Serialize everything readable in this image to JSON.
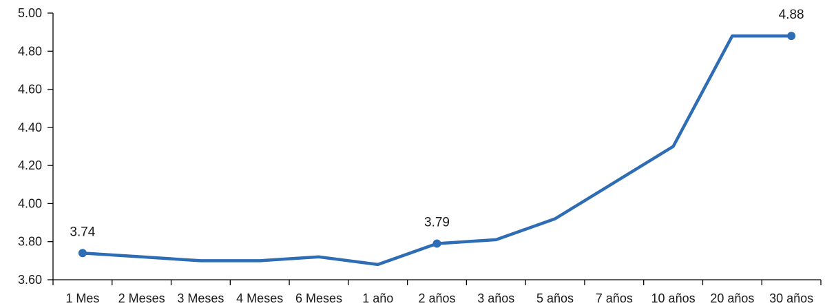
{
  "chart_data": {
    "type": "line",
    "title": "",
    "xlabel": "",
    "ylabel": "",
    "categories": [
      "1 Mes",
      "2 Meses",
      "3 Meses",
      "4 Meses",
      "6 Meses",
      "1 año",
      "2 años",
      "3 años",
      "5 años",
      "7 años",
      "10 años",
      "20 años",
      "30 años"
    ],
    "series": [
      {
        "values": [
          3.74,
          3.72,
          3.7,
          3.7,
          3.72,
          3.68,
          3.79,
          3.81,
          3.92,
          4.11,
          4.3,
          4.88,
          4.88
        ]
      }
    ],
    "ylim": [
      3.6,
      5.0
    ],
    "yticks": [
      "3.60",
      "3.80",
      "4.00",
      "4.20",
      "4.40",
      "4.60",
      "4.80",
      "5.00"
    ],
    "data_labels": [
      {
        "index": 0,
        "text": "3.74"
      },
      {
        "index": 6,
        "text": "3.79"
      },
      {
        "index": 12,
        "text": "4.88"
      }
    ],
    "grid": false,
    "legend": "none",
    "colors": {
      "line": "#2e6db4",
      "axis": "#000000"
    }
  }
}
